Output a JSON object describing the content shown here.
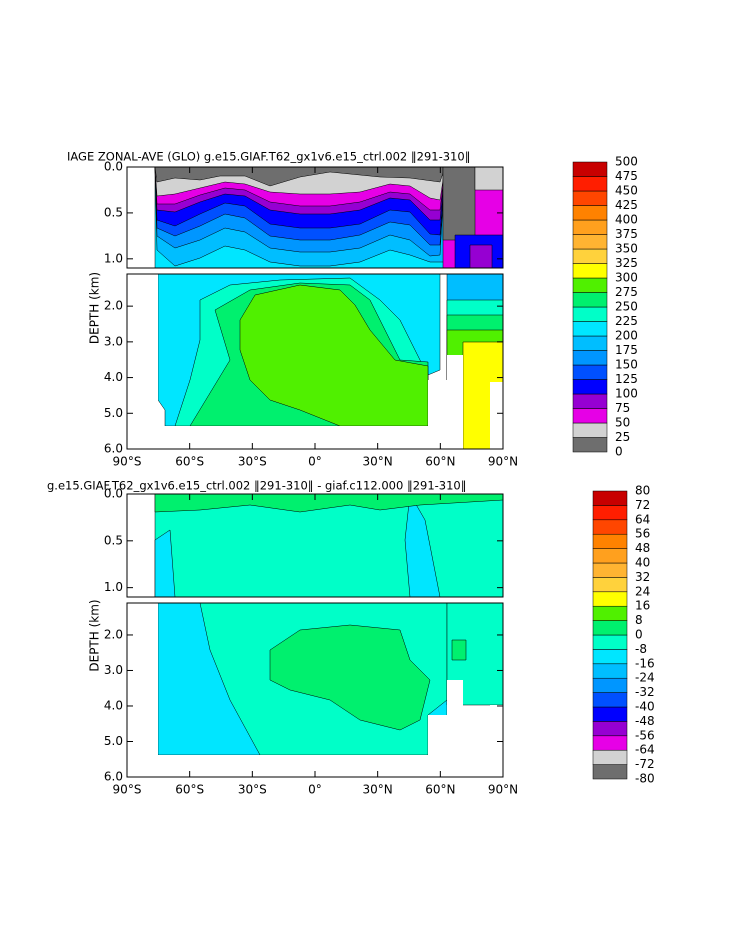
{
  "chart_data": [
    {
      "type": "contour",
      "title": "IAGE ZONAL-AVE (GLO) g.e15.GIAF.T62_gx1v6.e15_ctrl.002 ‖291-310‖",
      "ylabel": "DEPTH (km)",
      "xlim": [
        -90,
        90
      ],
      "xticks": [
        {
          "value": -90,
          "label": "90°S"
        },
        {
          "value": -60,
          "label": "60°S"
        },
        {
          "value": -30,
          "label": "30°S"
        },
        {
          "value": 0,
          "label": "0°"
        },
        {
          "value": 30,
          "label": "30°N"
        },
        {
          "value": 60,
          "label": "60°N"
        },
        {
          "value": 90,
          "label": "90°N"
        }
      ],
      "ylim": [
        0,
        6
      ],
      "y_inverted": true,
      "ybreak": 1.1,
      "yticks": [
        {
          "value": 0,
          "label": "0.0"
        },
        0.5,
        {
          "value": 1,
          "label": "1.0"
        },
        {
          "value": 2,
          "label": "2.0"
        },
        {
          "value": 3,
          "label": "3.0"
        },
        {
          "value": 4,
          "label": "4.0"
        },
        {
          "value": 5,
          "label": "5.0"
        },
        {
          "value": 6,
          "label": "6.0"
        }
      ],
      "colorbar": {
        "levels": [
          0,
          25,
          50,
          75,
          100,
          125,
          150,
          175,
          200,
          225,
          250,
          275,
          300,
          325,
          350,
          375,
          400,
          425,
          450,
          475,
          500
        ],
        "colors": [
          "#6e6e6e",
          "#d2d2d2",
          "#e600e6",
          "#9600d2",
          "#0000ff",
          "#0050ff",
          "#0096ff",
          "#00beff",
          "#00e6ff",
          "#00ffc8",
          "#00f06e",
          "#50f000",
          "#ffff00",
          "#ffd23c",
          "#ffb432",
          "#ffa01e",
          "#ff8200",
          "#ff4600",
          "#ff1e00",
          "#c80000"
        ]
      }
    },
    {
      "type": "contour",
      "title": "g.e15.GIAF.T62_gx1v6.e15_ctrl.002 ‖291-310‖ - giaf.c112.000 ‖291-310‖",
      "ylabel": "DEPTH (km)",
      "xlim": [
        -90,
        90
      ],
      "xticks": [
        {
          "value": -90,
          "label": "90°S"
        },
        {
          "value": -60,
          "label": "60°S"
        },
        {
          "value": -30,
          "label": "30°S"
        },
        {
          "value": 0,
          "label": "0°"
        },
        {
          "value": 30,
          "label": "30°N"
        },
        {
          "value": 60,
          "label": "60°N"
        },
        {
          "value": 90,
          "label": "90°N"
        }
      ],
      "ylim": [
        0,
        6
      ],
      "y_inverted": true,
      "ybreak": 1.1,
      "yticks": [
        {
          "value": 0,
          "label": "0.0"
        },
        0.5,
        {
          "value": 1,
          "label": "1.0"
        },
        {
          "value": 2,
          "label": "2.0"
        },
        {
          "value": 3,
          "label": "3.0"
        },
        {
          "value": 4,
          "label": "4.0"
        },
        {
          "value": 5,
          "label": "5.0"
        },
        {
          "value": 6,
          "label": "6.0"
        }
      ],
      "colorbar": {
        "levels": [
          -80,
          -72,
          -64,
          -56,
          -48,
          -40,
          -32,
          -24,
          -16,
          -8,
          0,
          8,
          16,
          24,
          32,
          40,
          48,
          56,
          64,
          72,
          80
        ],
        "colors": [
          "#6e6e6e",
          "#d2d2d2",
          "#e600e6",
          "#9600d2",
          "#0000ff",
          "#0050ff",
          "#0096ff",
          "#00beff",
          "#00e6ff",
          "#00ffc8",
          "#00f06e",
          "#50f000",
          "#ffff00",
          "#ffd23c",
          "#ffb432",
          "#ffa01e",
          "#ff8200",
          "#ff4600",
          "#ff1e00",
          "#c80000"
        ]
      }
    }
  ]
}
